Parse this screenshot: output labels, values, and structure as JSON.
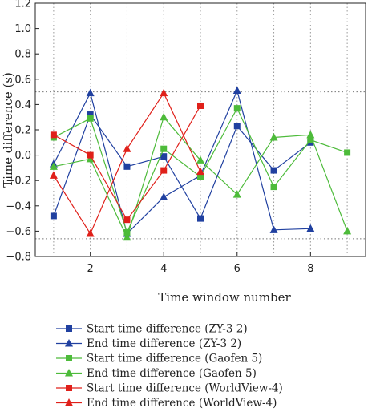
{
  "chart_data": {
    "type": "line",
    "title": "",
    "xlabel": "Time window number",
    "ylabel": "Time difference (s)",
    "xlim": [
      0.5,
      9.5
    ],
    "ylim": [
      -0.8,
      1.2
    ],
    "xticks": [
      2,
      4,
      6,
      8
    ],
    "yticks": [
      -0.8,
      -0.6,
      -0.4,
      -0.2,
      0.0,
      0.2,
      0.4,
      0.6,
      0.8,
      1.0,
      1.2
    ],
    "ytick_labels": [
      "−0.8",
      "−0.6",
      "−0.4",
      "−0.2",
      "0.0",
      "0.2",
      "0.4",
      "0.6",
      "0.8",
      "1.0",
      "1.2"
    ],
    "vertical_grid": [
      1,
      2,
      3,
      4,
      5,
      6,
      7,
      8,
      9
    ],
    "reference_lines_y": [
      0.5,
      -0.66
    ],
    "legend_position": "bottom",
    "series": [
      {
        "name": "Start time difference  (ZY-3 2)",
        "color": "#2040a0",
        "marker": "square",
        "x": [
          1,
          2,
          3,
          4,
          5,
          6,
          7,
          8
        ],
        "y": [
          -0.48,
          0.32,
          -0.09,
          -0.01,
          -0.5,
          0.23,
          -0.12,
          0.1
        ]
      },
      {
        "name": "End time difference  (ZY-3 2)",
        "color": "#2040a0",
        "marker": "triangle",
        "x": [
          1,
          2,
          3,
          4,
          5,
          6,
          7,
          8
        ],
        "y": [
          -0.07,
          0.49,
          -0.62,
          -0.33,
          -0.16,
          0.51,
          -0.59,
          -0.58
        ]
      },
      {
        "name": "Start time difference  (Gaofen 5)",
        "color": "#4dbb3a",
        "marker": "square",
        "x": [
          1,
          2,
          3,
          4,
          5,
          6,
          7,
          8,
          9
        ],
        "y": [
          0.14,
          0.29,
          -0.61,
          0.05,
          -0.17,
          0.37,
          -0.25,
          0.12,
          0.02
        ]
      },
      {
        "name": "End time difference  (Gaofen 5)",
        "color": "#4dbb3a",
        "marker": "triangle",
        "x": [
          1,
          2,
          3,
          4,
          5,
          6,
          7,
          8,
          9
        ],
        "y": [
          -0.09,
          -0.03,
          -0.65,
          0.3,
          -0.04,
          -0.31,
          0.14,
          0.16,
          -0.6
        ]
      },
      {
        "name": "Start time difference  (WorldView-4)",
        "color": "#e0201a",
        "marker": "square",
        "x": [
          1,
          2,
          3,
          4,
          5
        ],
        "y": [
          0.16,
          0.0,
          -0.51,
          -0.12,
          0.39
        ]
      },
      {
        "name": "End time difference  (WorldView-4)",
        "color": "#e0201a",
        "marker": "triangle",
        "x": [
          1,
          2,
          3,
          4,
          5
        ],
        "y": [
          -0.16,
          -0.62,
          0.05,
          0.49,
          -0.13
        ]
      }
    ]
  }
}
